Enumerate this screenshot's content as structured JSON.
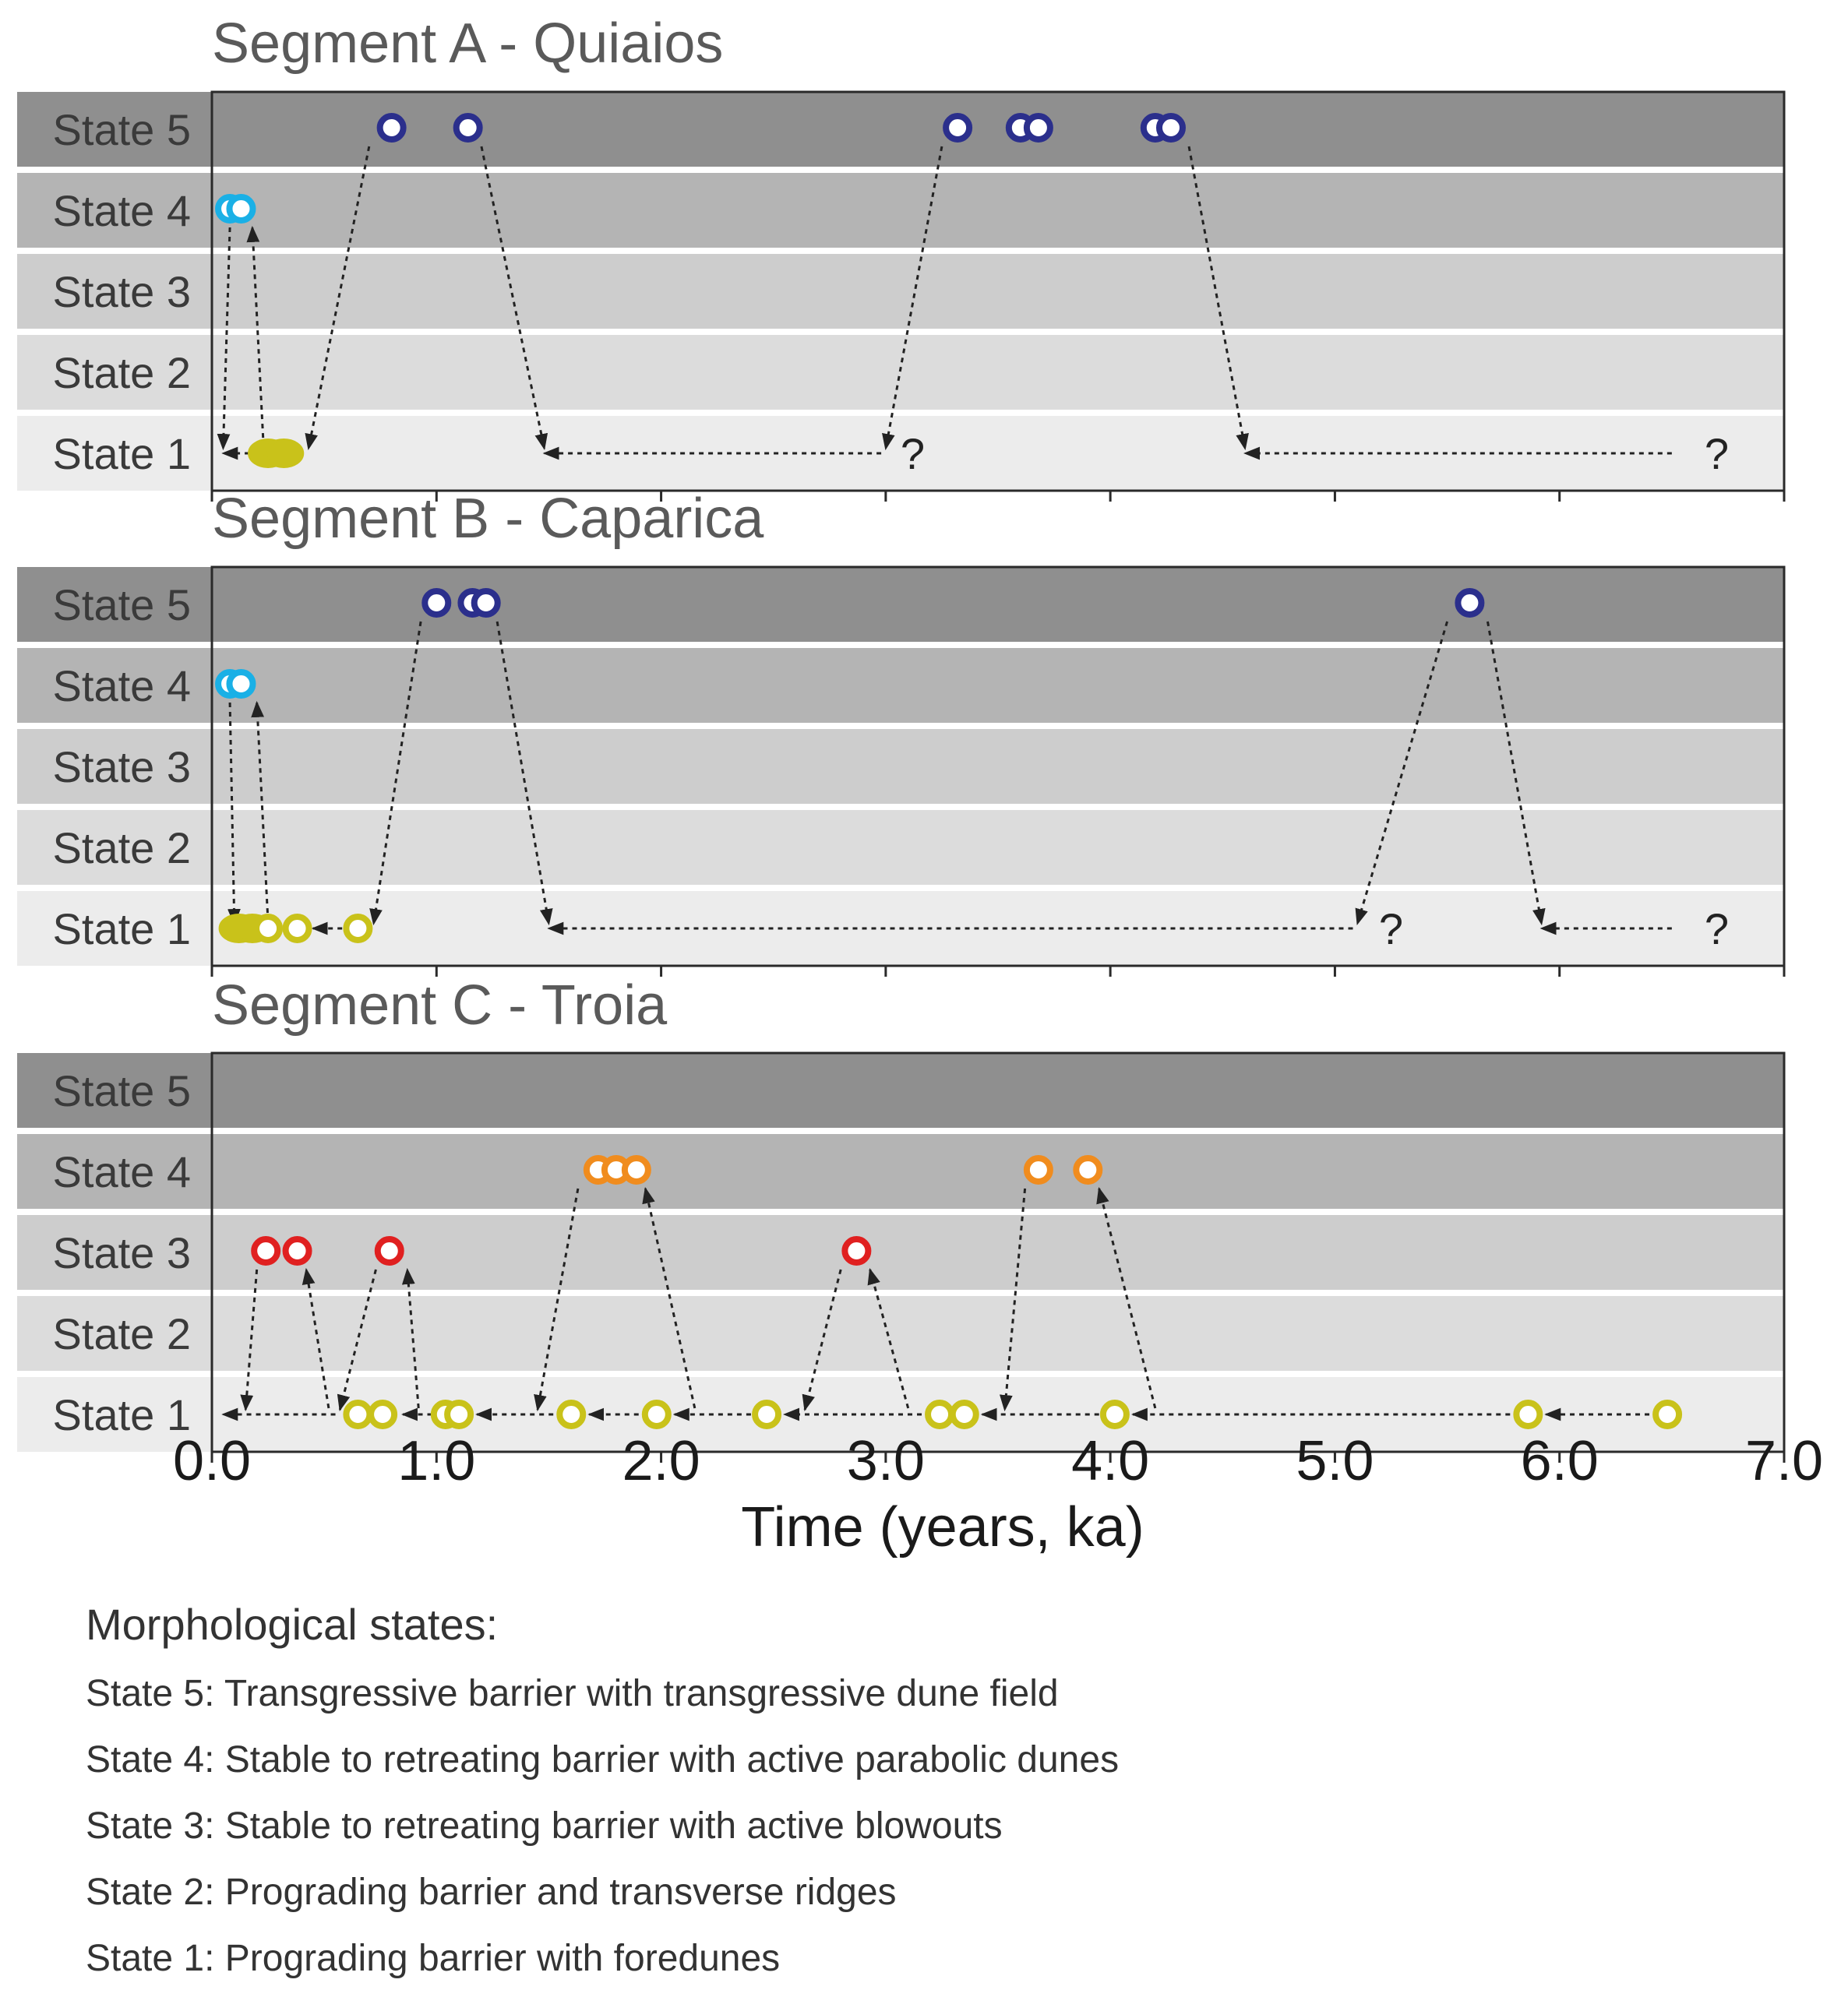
{
  "chart_data": {
    "type": "scatter",
    "x_axis": {
      "label": "Time (years, ka)",
      "ticks": [
        "0.0",
        "1.0",
        "2.0",
        "3.0",
        "4.0",
        "5.0",
        "6.0",
        "7.0"
      ],
      "range": [
        0,
        7
      ]
    },
    "state_labels": [
      "State 5",
      "State 4",
      "State 3",
      "State 2",
      "State 1"
    ],
    "colors": {
      "state5": "#2b2f8c",
      "state4_ab": "#1ab0e6",
      "state4_c": "#f08c1e",
      "state3": "#e02020",
      "state1": "#c9c21a",
      "band_dark": "#8f8f8f",
      "band_mid": "#b4b4b4",
      "band_light": "#cdcdcd",
      "band_lighter": "#dcdcdc",
      "band_lightest": "#ececec"
    },
    "segments": [
      {
        "title": "Segment A - Quiaios",
        "points": [
          {
            "x": 0.8,
            "state": 5
          },
          {
            "x": 1.14,
            "state": 5
          },
          {
            "x": 3.32,
            "state": 5
          },
          {
            "x": 3.6,
            "state": 5
          },
          {
            "x": 3.68,
            "state": 5
          },
          {
            "x": 4.2,
            "state": 5
          },
          {
            "x": 4.27,
            "state": 5
          },
          {
            "x": 0.08,
            "state": 4
          },
          {
            "x": 0.13,
            "state": 4
          },
          {
            "x": 0.25,
            "state": 1,
            "filled": true
          },
          {
            "x": 0.32,
            "state": 1,
            "filled": true
          }
        ],
        "arrows": [
          {
            "from": [
              0.08,
              4
            ],
            "to": [
              0.05,
              1
            ]
          },
          {
            "from": [
              0.23,
              1
            ],
            "to": [
              0.18,
              4
            ]
          },
          {
            "from": [
              0.7,
              5
            ],
            "to": [
              0.43,
              1
            ]
          },
          {
            "from": [
              1.2,
              5
            ],
            "to": [
              1.48,
              1
            ],
            "reverse": true
          },
          {
            "from": [
              3.25,
              5
            ],
            "to": [
              3.0,
              1
            ]
          },
          {
            "from": [
              4.35,
              5
            ],
            "to": [
              4.6,
              1
            ],
            "reverse": true
          }
        ],
        "hlines": [
          {
            "x1": 0.05,
            "x2": 0.25,
            "arrow_at": "start"
          },
          {
            "x1": 1.48,
            "x2": 2.98,
            "arrow_at": "start"
          },
          {
            "x1": 4.6,
            "x2": 6.5,
            "arrow_at": "start"
          }
        ],
        "question_marks": [
          "?",
          "?"
        ],
        "question_x": [
          3.12,
          6.7
        ]
      },
      {
        "title": "Segment B - Caparica",
        "points": [
          {
            "x": 1.0,
            "state": 5
          },
          {
            "x": 1.16,
            "state": 5
          },
          {
            "x": 1.22,
            "state": 5
          },
          {
            "x": 5.6,
            "state": 5
          },
          {
            "x": 0.08,
            "state": 4
          },
          {
            "x": 0.13,
            "state": 4
          },
          {
            "x": 0.12,
            "state": 1,
            "filled": true
          },
          {
            "x": 0.18,
            "state": 1,
            "filled": true
          },
          {
            "x": 0.25,
            "state": 1
          },
          {
            "x": 0.38,
            "state": 1
          },
          {
            "x": 0.65,
            "state": 1
          }
        ],
        "arrows": [
          {
            "from": [
              0.08,
              4
            ],
            "to": [
              0.1,
              1
            ]
          },
          {
            "from": [
              0.25,
              1
            ],
            "to": [
              0.2,
              4
            ]
          },
          {
            "from": [
              0.93,
              5
            ],
            "to": [
              0.72,
              1
            ]
          },
          {
            "from": [
              1.27,
              5
            ],
            "to": [
              1.5,
              1
            ],
            "reverse": true
          },
          {
            "from": [
              5.5,
              5
            ],
            "to": [
              5.1,
              1
            ]
          },
          {
            "from": [
              5.68,
              5
            ],
            "to": [
              5.92,
              1
            ],
            "reverse": true
          }
        ],
        "hlines": [
          {
            "x1": 0.45,
            "x2": 0.58,
            "arrow_at": "start"
          },
          {
            "x1": 1.5,
            "x2": 5.08,
            "arrow_at": "start"
          },
          {
            "x1": 5.92,
            "x2": 6.5,
            "arrow_at": "start"
          }
        ],
        "question_marks": [
          "?",
          "?"
        ],
        "question_x": [
          5.25,
          6.7
        ]
      },
      {
        "title": "Segment C - Troia",
        "points": [
          {
            "x": 1.72,
            "state": 4
          },
          {
            "x": 1.8,
            "state": 4
          },
          {
            "x": 1.89,
            "state": 4
          },
          {
            "x": 3.68,
            "state": 4
          },
          {
            "x": 3.9,
            "state": 4
          },
          {
            "x": 0.24,
            "state": 3
          },
          {
            "x": 0.38,
            "state": 3
          },
          {
            "x": 0.79,
            "state": 3
          },
          {
            "x": 2.87,
            "state": 3
          },
          {
            "x": 0.65,
            "state": 1
          },
          {
            "x": 0.76,
            "state": 1
          },
          {
            "x": 1.04,
            "state": 1
          },
          {
            "x": 1.1,
            "state": 1
          },
          {
            "x": 1.6,
            "state": 1
          },
          {
            "x": 1.98,
            "state": 1
          },
          {
            "x": 2.47,
            "state": 1
          },
          {
            "x": 3.24,
            "state": 1
          },
          {
            "x": 3.35,
            "state": 1
          },
          {
            "x": 4.02,
            "state": 1
          },
          {
            "x": 5.86,
            "state": 1
          },
          {
            "x": 6.48,
            "state": 1
          }
        ],
        "arrows": [
          {
            "from": [
              0.2,
              3
            ],
            "to": [
              0.15,
              1
            ]
          },
          {
            "from": [
              0.52,
              1
            ],
            "to": [
              0.42,
              3
            ]
          },
          {
            "from": [
              0.73,
              3
            ],
            "to": [
              0.57,
              1
            ]
          },
          {
            "from": [
              0.92,
              1
            ],
            "to": [
              0.87,
              3
            ]
          },
          {
            "from": [
              1.63,
              4
            ],
            "to": [
              1.45,
              1
            ]
          },
          {
            "from": [
              2.15,
              1
            ],
            "to": [
              1.93,
              4
            ]
          },
          {
            "from": [
              2.8,
              3
            ],
            "to": [
              2.64,
              1
            ]
          },
          {
            "from": [
              3.1,
              1
            ],
            "to": [
              2.93,
              3
            ]
          },
          {
            "from": [
              3.62,
              4
            ],
            "to": [
              3.53,
              1
            ]
          },
          {
            "from": [
              4.2,
              1
            ],
            "to": [
              3.95,
              4
            ]
          }
        ],
        "hlines": [
          {
            "x1": 0.05,
            "x2": 0.55,
            "arrow_at": "start"
          },
          {
            "x1": 0.85,
            "x2": 0.98,
            "arrow_at": "start"
          },
          {
            "x1": 1.18,
            "x2": 1.52,
            "arrow_at": "start"
          },
          {
            "x1": 1.68,
            "x2": 1.9,
            "arrow_at": "start"
          },
          {
            "x1": 2.06,
            "x2": 2.4,
            "arrow_at": "start"
          },
          {
            "x1": 2.55,
            "x2": 3.16,
            "arrow_at": "start"
          },
          {
            "x1": 3.43,
            "x2": 3.95,
            "arrow_at": "start"
          },
          {
            "x1": 4.1,
            "x2": 5.78,
            "arrow_at": "start"
          },
          {
            "x1": 5.94,
            "x2": 6.4,
            "arrow_at": "start"
          }
        ],
        "question_marks": [],
        "question_x": []
      }
    ]
  },
  "legend": {
    "title": "Morphological states:",
    "items": [
      "State 5: Transgressive barrier with transgressive dune field",
      "State 4: Stable to retreating barrier with active parabolic dunes",
      "State 3: Stable to retreating barrier with active blowouts",
      "State 2: Prograding barrier and transverse ridges",
      "State 1: Prograding barrier with foredunes"
    ]
  }
}
